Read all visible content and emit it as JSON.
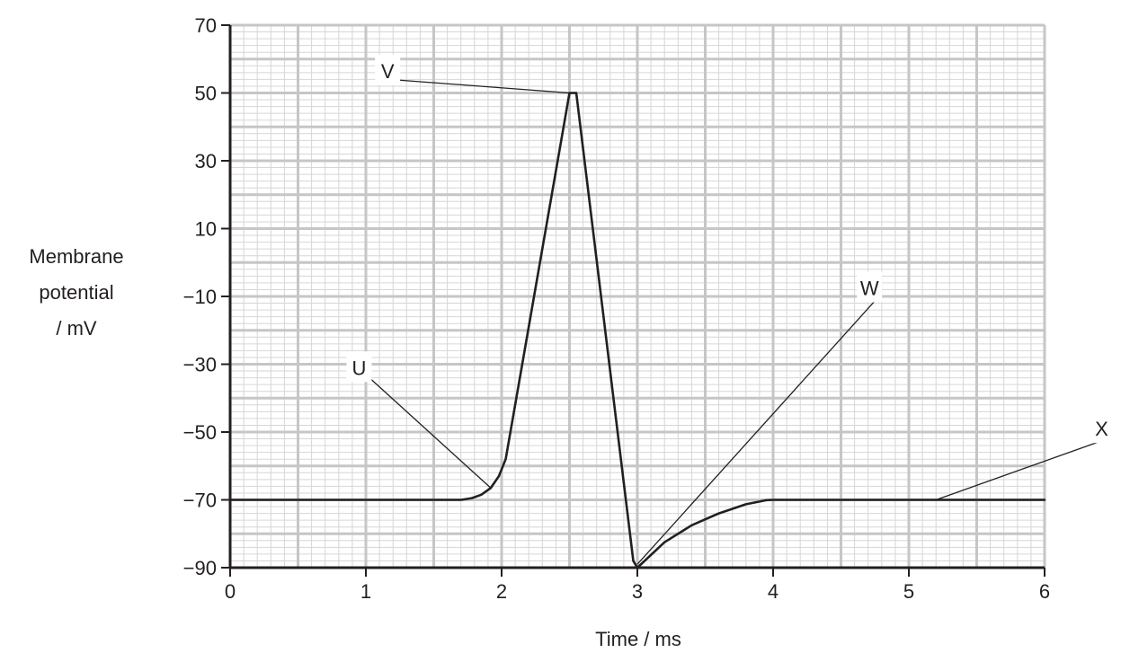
{
  "chart_data": {
    "type": "line",
    "title": "",
    "xlabel": "Time / ms",
    "ylabel": [
      "Membrane",
      "potential",
      "/ mV"
    ],
    "xlim": [
      0,
      6
    ],
    "ylim": [
      -90,
      70
    ],
    "x_ticks": [
      0,
      1,
      2,
      3,
      4,
      5,
      6
    ],
    "x_tick_labels": [
      "0",
      "1",
      "2",
      "3",
      "4",
      "5",
      "6"
    ],
    "y_ticks": [
      70,
      50,
      30,
      10,
      -10,
      -30,
      -50,
      -70,
      -90
    ],
    "y_tick_labels": [
      "70",
      "50",
      "30",
      "10",
      "−10",
      "−30",
      "−50",
      "−70",
      "−90"
    ],
    "grid": true,
    "grid_minor_per_major_x": 10,
    "grid_minor_per_major_y": 10,
    "series": [
      {
        "x": [
          0,
          1.7,
          1.78,
          1.85,
          1.92,
          1.98,
          2.03,
          2.5,
          2.55,
          2.97,
          3.0,
          3.08,
          3.2,
          3.4,
          3.6,
          3.8,
          3.95,
          4.0,
          6
        ],
        "y": [
          -70,
          -70,
          -69.5,
          -68.5,
          -66.5,
          -63,
          -58,
          50,
          50,
          -88,
          -90,
          -87,
          -82.5,
          -77.5,
          -74,
          -71.3,
          -70.1,
          -70,
          -70
        ]
      }
    ],
    "annotations": [
      {
        "label": "V",
        "text_at": [
          1.16,
          56.5
        ],
        "point_at": [
          2.5,
          50
        ]
      },
      {
        "label": "U",
        "text_at": [
          0.95,
          -31
        ],
        "point_at": [
          1.92,
          -66.5
        ]
      },
      {
        "label": "W",
        "text_at": [
          4.71,
          -7.5
        ],
        "point_at": [
          3.0,
          -89
        ]
      },
      {
        "label": "X",
        "text_at": [
          6.42,
          -49
        ],
        "point_at": [
          5.2,
          -70
        ]
      }
    ]
  },
  "colors": {
    "major_grid": "#c6c6c6",
    "minor_grid": "#d6d6d6",
    "axis": "#231f20",
    "curve": "#231f20"
  }
}
